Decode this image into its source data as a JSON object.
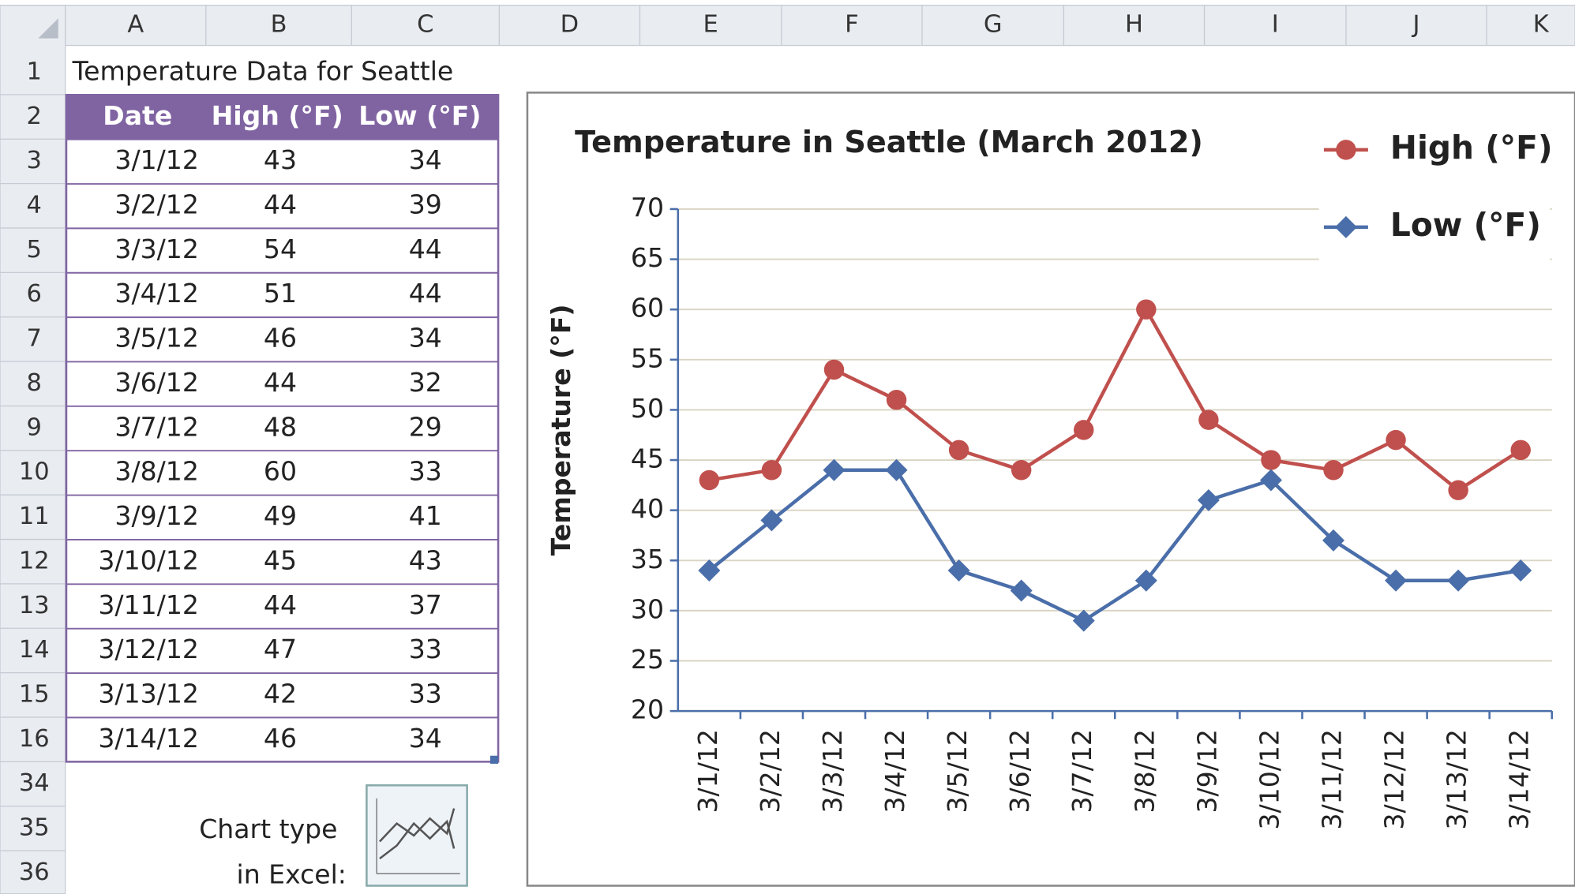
{
  "sheet": {
    "columns": [
      "A",
      "B",
      "C",
      "D",
      "E",
      "F",
      "G",
      "H",
      "I",
      "J",
      "K"
    ],
    "rows": [
      1,
      2,
      3,
      4,
      5,
      6,
      7,
      8,
      9,
      10,
      11,
      12,
      13,
      14,
      15,
      16,
      34,
      35,
      36
    ],
    "title": "Temperature Data for Seattle",
    "date_header": "Date",
    "note": [
      "Chart type",
      "in Excel:"
    ]
  },
  "chart_data": {
    "type": "line",
    "title": "Temperature in Seattle (March 2012)",
    "ylabel": "Temperature (°F)",
    "categories": [
      "3/1/12",
      "3/2/12",
      "3/3/12",
      "3/4/12",
      "3/5/12",
      "3/6/12",
      "3/7/12",
      "3/8/12",
      "3/9/12",
      "3/10/12",
      "3/11/12",
      "3/12/12",
      "3/13/12",
      "3/14/12"
    ],
    "series": [
      {
        "name": "High (°F)",
        "color": "#c0504d",
        "marker": "circle",
        "values": [
          43,
          44,
          54,
          51,
          46,
          44,
          48,
          60,
          49,
          45,
          44,
          47,
          42,
          46
        ]
      },
      {
        "name": "Low (°F)",
        "color": "#4a6ea9",
        "marker": "diamond",
        "values": [
          34,
          39,
          44,
          44,
          34,
          32,
          29,
          33,
          41,
          43,
          37,
          33,
          33,
          34
        ]
      }
    ],
    "ylim": [
      20,
      70
    ],
    "yticks": [
      20,
      25,
      30,
      35,
      40,
      45,
      50,
      55,
      60,
      65,
      70
    ],
    "grid": true,
    "legend": "top-right"
  }
}
